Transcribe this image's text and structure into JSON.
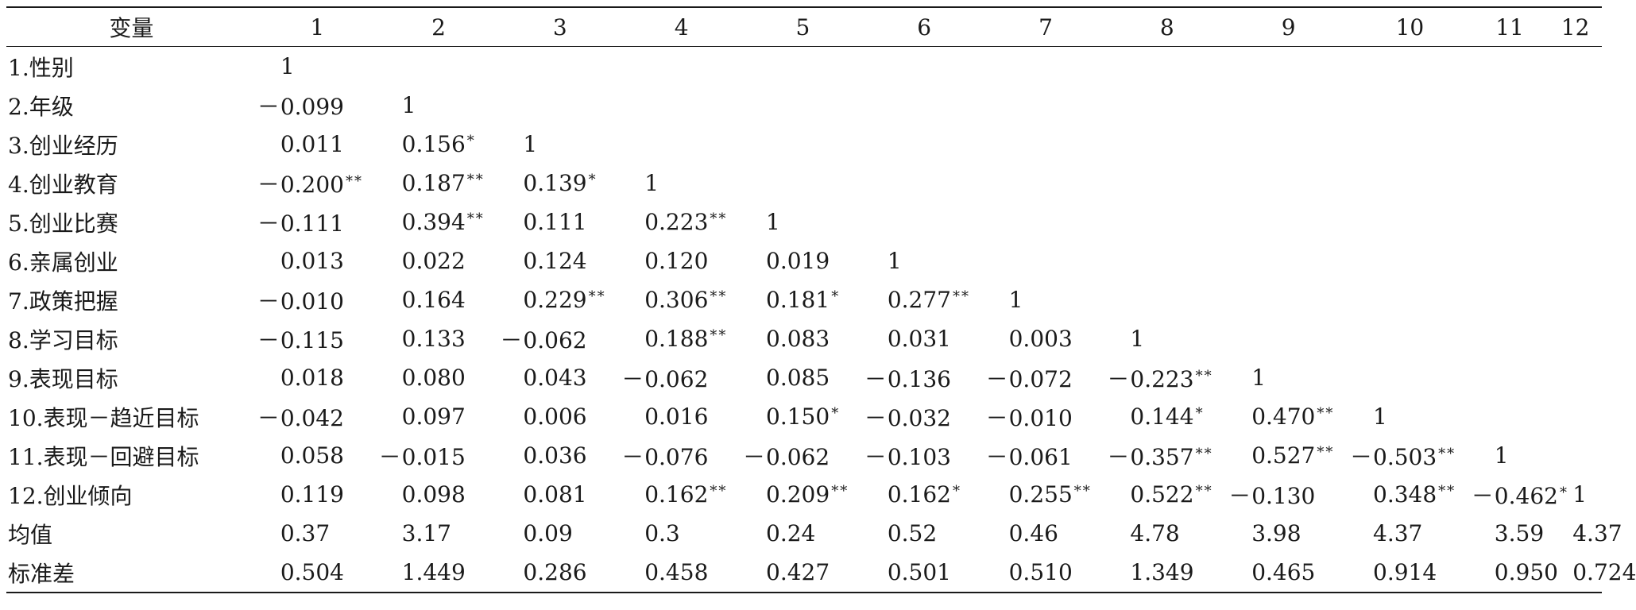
{
  "table": {
    "header": [
      "变量",
      "1",
      "2",
      "3",
      "4",
      "5",
      "6",
      "7",
      "8",
      "9",
      "10",
      "11",
      "12"
    ],
    "rows": [
      {
        "label": "1.性别",
        "cells": [
          {
            "v": "1"
          }
        ]
      },
      {
        "label": "2.年级",
        "cells": [
          {
            "neg": true,
            "v": "0.099"
          },
          {
            "v": "1"
          }
        ]
      },
      {
        "label": "3.创业经历",
        "cells": [
          {
            "v": "0.011"
          },
          {
            "v": "0.156",
            "sig": "*"
          },
          {
            "v": "1"
          }
        ]
      },
      {
        "label": "4.创业教育",
        "cells": [
          {
            "neg": true,
            "v": "0.200",
            "sig": "**"
          },
          {
            "v": "0.187",
            "sig": "**"
          },
          {
            "v": "0.139",
            "sig": "*"
          },
          {
            "v": "1"
          }
        ]
      },
      {
        "label": "5.创业比赛",
        "cells": [
          {
            "neg": true,
            "v": "0.111"
          },
          {
            "v": "0.394",
            "sig": "**"
          },
          {
            "v": "0.111"
          },
          {
            "v": "0.223",
            "sig": "**"
          },
          {
            "v": "1"
          }
        ]
      },
      {
        "label": "6.亲属创业",
        "cells": [
          {
            "v": "0.013"
          },
          {
            "v": "0.022"
          },
          {
            "v": "0.124"
          },
          {
            "v": "0.120"
          },
          {
            "v": "0.019"
          },
          {
            "v": "1"
          }
        ]
      },
      {
        "label": "7.政策把握",
        "cells": [
          {
            "neg": true,
            "v": "0.010"
          },
          {
            "v": "0.164"
          },
          {
            "v": "0.229",
            "sig": "**"
          },
          {
            "v": "0.306",
            "sig": "**"
          },
          {
            "v": "0.181",
            "sig": "*"
          },
          {
            "v": "0.277",
            "sig": "**"
          },
          {
            "v": "1"
          }
        ]
      },
      {
        "label": "8.学习目标",
        "cells": [
          {
            "neg": true,
            "v": "0.115"
          },
          {
            "v": "0.133"
          },
          {
            "neg": true,
            "v": "0.062"
          },
          {
            "v": "0.188",
            "sig": "**"
          },
          {
            "v": "0.083"
          },
          {
            "v": "0.031"
          },
          {
            "v": "0.003"
          },
          {
            "v": "1"
          }
        ]
      },
      {
        "label": "9.表现目标",
        "cells": [
          {
            "v": "0.018"
          },
          {
            "v": "0.080"
          },
          {
            "v": "0.043"
          },
          {
            "neg": true,
            "v": "0.062"
          },
          {
            "v": "0.085"
          },
          {
            "neg": true,
            "v": "0.136"
          },
          {
            "neg": true,
            "v": "0.072"
          },
          {
            "neg": true,
            "v": "0.223",
            "sig": "**"
          },
          {
            "v": "1"
          }
        ]
      },
      {
        "label": "10.表现－趋近目标",
        "cells": [
          {
            "neg": true,
            "v": "0.042"
          },
          {
            "v": "0.097"
          },
          {
            "v": "0.006"
          },
          {
            "v": "0.016"
          },
          {
            "v": "0.150",
            "sig": "*"
          },
          {
            "neg": true,
            "v": "0.032"
          },
          {
            "neg": true,
            "v": "0.010"
          },
          {
            "v": "0.144",
            "sig": "*"
          },
          {
            "v": "0.470",
            "sig": "**"
          },
          {
            "v": "1"
          }
        ]
      },
      {
        "label": "11.表现－回避目标",
        "cells": [
          {
            "v": "0.058"
          },
          {
            "neg": true,
            "v": "0.015"
          },
          {
            "v": "0.036"
          },
          {
            "neg": true,
            "v": "0.076"
          },
          {
            "neg": true,
            "v": "0.062"
          },
          {
            "neg": true,
            "v": "0.103"
          },
          {
            "neg": true,
            "v": "0.061"
          },
          {
            "neg": true,
            "v": "0.357",
            "sig": "**"
          },
          {
            "v": "0.527",
            "sig": "**"
          },
          {
            "neg": true,
            "v": "0.503",
            "sig": "**"
          },
          {
            "v": "1"
          }
        ]
      },
      {
        "label": "12.创业倾向",
        "cells": [
          {
            "v": "0.119"
          },
          {
            "v": "0.098"
          },
          {
            "v": "0.081"
          },
          {
            "v": "0.162",
            "sig": "**"
          },
          {
            "v": "0.209",
            "sig": "**"
          },
          {
            "v": "0.162",
            "sig": "*"
          },
          {
            "v": "0.255",
            "sig": "**"
          },
          {
            "v": "0.522",
            "sig": "**"
          },
          {
            "neg": true,
            "v": "0.130"
          },
          {
            "v": "0.348",
            "sig": "**"
          },
          {
            "neg": true,
            "v": "0.462",
            "sig": "*"
          },
          {
            "v": "1"
          }
        ]
      },
      {
        "label": "均值",
        "cells": [
          {
            "v": "0.37"
          },
          {
            "v": "3.17"
          },
          {
            "v": "0.09"
          },
          {
            "v": "0.3"
          },
          {
            "v": "0.24"
          },
          {
            "v": "0.52"
          },
          {
            "v": "0.46"
          },
          {
            "v": "4.78"
          },
          {
            "v": "3.98"
          },
          {
            "v": "4.37"
          },
          {
            "v": "3.59"
          },
          {
            "v": "4.37"
          }
        ]
      },
      {
        "label": "标准差",
        "cells": [
          {
            "v": "0.504"
          },
          {
            "v": "1.449"
          },
          {
            "v": "0.286"
          },
          {
            "v": "0.458"
          },
          {
            "v": "0.427"
          },
          {
            "v": "0.501"
          },
          {
            "v": "0.510"
          },
          {
            "v": "1.349"
          },
          {
            "v": "0.465"
          },
          {
            "v": "0.914"
          },
          {
            "v": "0.950"
          },
          {
            "v": "0.724"
          }
        ]
      }
    ]
  },
  "symbols": {
    "minus": "－"
  }
}
